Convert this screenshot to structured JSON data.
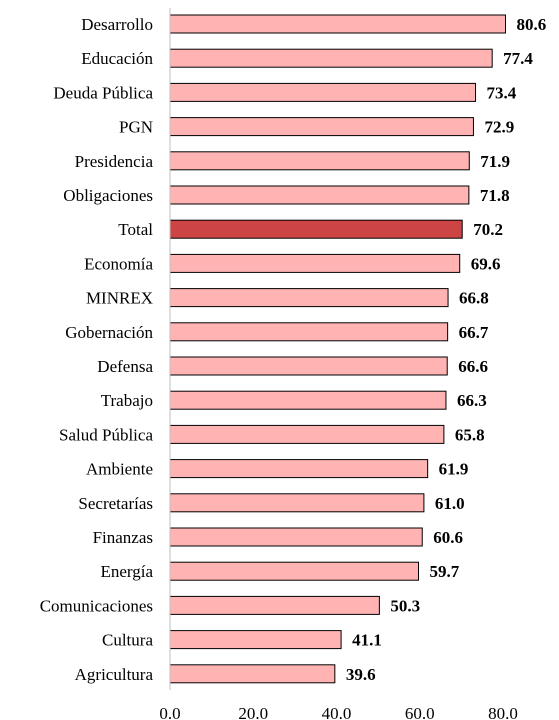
{
  "chart_data": {
    "type": "bar",
    "orientation": "horizontal",
    "categories": [
      "Desarrollo",
      "Educación",
      "Deuda Pública",
      "PGN",
      "Presidencia",
      "Obligaciones",
      "Total",
      "Economía",
      "MINREX",
      "Gobernación",
      "Defensa",
      "Trabajo",
      "Salud Pública",
      "Ambiente",
      "Secretarías",
      "Finanzas",
      "Energía",
      "Comunicaciones",
      "Cultura",
      "Agricultura"
    ],
    "values": [
      80.6,
      77.4,
      73.4,
      72.9,
      71.9,
      71.8,
      70.2,
      69.6,
      66.8,
      66.7,
      66.6,
      66.3,
      65.8,
      61.9,
      61.0,
      60.6,
      59.7,
      50.3,
      41.1,
      39.6
    ],
    "value_labels": [
      "80.6",
      "77.4",
      "73.4",
      "72.9",
      "71.9",
      "71.8",
      "70.2",
      "69.6",
      "66.8",
      "66.7",
      "66.6",
      "66.3",
      "65.8",
      "61.9",
      "61.0",
      "60.6",
      "59.7",
      "50.3",
      "41.1",
      "39.6"
    ],
    "highlight_category": "Total",
    "xlim": [
      0,
      80
    ],
    "x_ticks": [
      "0.0",
      "20.0",
      "40.0",
      "60.0",
      "80.0"
    ],
    "title": "",
    "xlabel": "",
    "ylabel": "",
    "grid": false,
    "legend": "none",
    "colors": {
      "bar_fill": "#ffb3b3",
      "highlight_fill": "#cc4444",
      "bar_stroke": "#000000",
      "axis": "#bfbfbf"
    }
  }
}
